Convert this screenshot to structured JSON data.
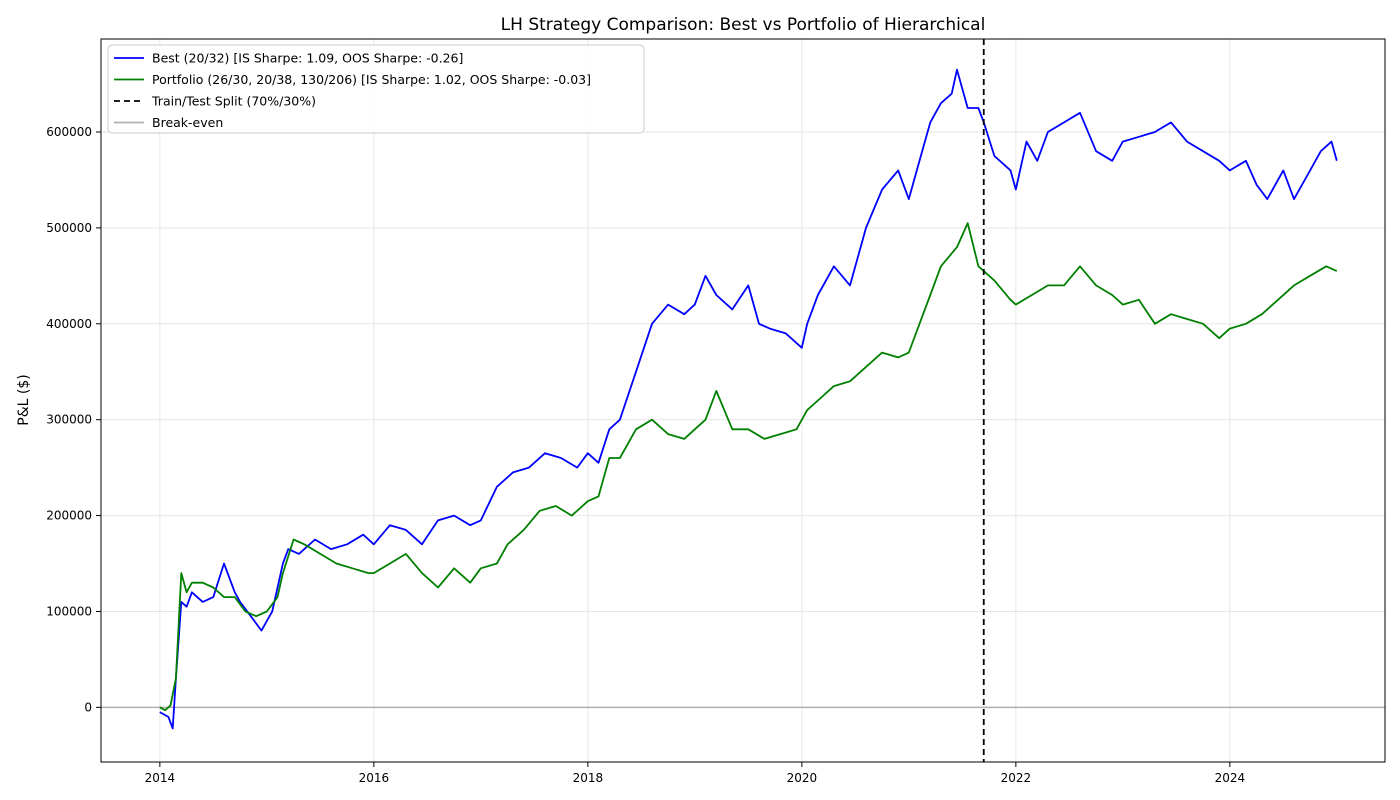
{
  "chart_data": {
    "type": "line",
    "title": "LH Strategy Comparison: Best vs Portfolio of Hierarchical",
    "xlabel": "",
    "ylabel": "P&L ($)",
    "xlim": [
      2013.45,
      2025.45
    ],
    "ylim": [
      -57000,
      697000
    ],
    "x_ticks": [
      2014,
      2016,
      2018,
      2020,
      2022,
      2024
    ],
    "x_tick_labels": [
      "2014",
      "2016",
      "2018",
      "2020",
      "2022",
      "2024"
    ],
    "y_ticks": [
      0,
      100000,
      200000,
      300000,
      400000,
      500000,
      600000
    ],
    "y_tick_labels": [
      "0",
      "100000",
      "200000",
      "300000",
      "400000",
      "500000",
      "600000"
    ],
    "grid": true,
    "legend_position": "upper-left",
    "split": {
      "x": 2021.7,
      "label": "Train/Test Split (70%/30%)",
      "color": "#000000"
    },
    "baseline": {
      "y": 0,
      "label": "Break-even",
      "color": "#b0b0b0"
    },
    "series": [
      {
        "name": "Best (20/32) [IS Sharpe: 1.09, OOS Sharpe: -0.26]",
        "color": "#0000ff",
        "x": [
          2014.0,
          2014.08,
          2014.12,
          2014.15,
          2014.2,
          2014.25,
          2014.3,
          2014.4,
          2014.5,
          2014.6,
          2014.7,
          2014.75,
          2014.85,
          2014.95,
          2015.0,
          2015.05,
          2015.15,
          2015.2,
          2015.3,
          2015.45,
          2015.6,
          2015.75,
          2015.9,
          2016.0,
          2016.15,
          2016.3,
          2016.45,
          2016.6,
          2016.75,
          2016.9,
          2017.0,
          2017.15,
          2017.3,
          2017.45,
          2017.6,
          2017.75,
          2017.9,
          2018.0,
          2018.1,
          2018.2,
          2018.3,
          2018.45,
          2018.6,
          2018.75,
          2018.9,
          2019.0,
          2019.1,
          2019.2,
          2019.35,
          2019.5,
          2019.6,
          2019.7,
          2019.85,
          2020.0,
          2020.05,
          2020.15,
          2020.3,
          2020.45,
          2020.6,
          2020.75,
          2020.9,
          2021.0,
          2021.1,
          2021.2,
          2021.3,
          2021.4,
          2021.45,
          2021.55,
          2021.65,
          2021.7,
          2021.8,
          2021.95,
          2022.0,
          2022.1,
          2022.2,
          2022.3,
          2022.45,
          2022.6,
          2022.75,
          2022.9,
          2023.0,
          2023.15,
          2023.3,
          2023.45,
          2023.6,
          2023.75,
          2023.9,
          2024.0,
          2024.15,
          2024.25,
          2024.35,
          2024.5,
          2024.6,
          2024.75,
          2024.85,
          2024.95,
          2025.0
        ],
        "y": [
          -5000,
          -10000,
          -22000,
          30000,
          110000,
          105000,
          120000,
          110000,
          115000,
          150000,
          120000,
          110000,
          95000,
          80000,
          90000,
          100000,
          150000,
          165000,
          160000,
          175000,
          165000,
          170000,
          180000,
          170000,
          190000,
          185000,
          170000,
          195000,
          200000,
          190000,
          195000,
          230000,
          245000,
          250000,
          265000,
          260000,
          250000,
          265000,
          255000,
          290000,
          300000,
          350000,
          400000,
          420000,
          410000,
          420000,
          450000,
          430000,
          415000,
          440000,
          400000,
          395000,
          390000,
          375000,
          400000,
          430000,
          460000,
          440000,
          500000,
          540000,
          560000,
          530000,
          570000,
          610000,
          630000,
          640000,
          665000,
          625000,
          625000,
          610000,
          575000,
          560000,
          540000,
          590000,
          570000,
          600000,
          610000,
          620000,
          580000,
          570000,
          590000,
          595000,
          600000,
          610000,
          590000,
          580000,
          570000,
          560000,
          570000,
          545000,
          530000,
          560000,
          530000,
          560000,
          580000,
          590000,
          570000
        ]
      },
      {
        "name": "Portfolio (26/30, 20/38, 130/206) [IS Sharpe: 1.02, OOS Sharpe: -0.03]",
        "color": "#008000",
        "x": [
          2014.0,
          2014.05,
          2014.1,
          2014.15,
          2014.2,
          2014.25,
          2014.3,
          2014.4,
          2014.5,
          2014.6,
          2014.7,
          2014.8,
          2014.9,
          2015.0,
          2015.1,
          2015.15,
          2015.25,
          2015.35,
          2015.5,
          2015.65,
          2015.8,
          2015.95,
          2016.0,
          2016.15,
          2016.3,
          2016.45,
          2016.6,
          2016.75,
          2016.9,
          2017.0,
          2017.15,
          2017.25,
          2017.4,
          2017.55,
          2017.7,
          2017.85,
          2018.0,
          2018.1,
          2018.2,
          2018.3,
          2018.45,
          2018.6,
          2018.75,
          2018.9,
          2019.0,
          2019.1,
          2019.2,
          2019.35,
          2019.5,
          2019.65,
          2019.8,
          2019.95,
          2020.05,
          2020.15,
          2020.3,
          2020.45,
          2020.6,
          2020.75,
          2020.9,
          2021.0,
          2021.1,
          2021.2,
          2021.3,
          2021.45,
          2021.55,
          2021.65,
          2021.7,
          2021.8,
          2021.95,
          2022.0,
          2022.15,
          2022.3,
          2022.45,
          2022.6,
          2022.75,
          2022.9,
          2023.0,
          2023.15,
          2023.3,
          2023.45,
          2023.6,
          2023.75,
          2023.9,
          2024.0,
          2024.15,
          2024.3,
          2024.45,
          2024.6,
          2024.75,
          2024.9,
          2025.0
        ],
        "y": [
          0,
          -3000,
          2000,
          30000,
          140000,
          120000,
          130000,
          130000,
          125000,
          115000,
          115000,
          100000,
          95000,
          100000,
          115000,
          140000,
          175000,
          170000,
          160000,
          150000,
          145000,
          140000,
          140000,
          150000,
          160000,
          140000,
          125000,
          145000,
          130000,
          145000,
          150000,
          170000,
          185000,
          205000,
          210000,
          200000,
          215000,
          220000,
          260000,
          260000,
          290000,
          300000,
          285000,
          280000,
          290000,
          300000,
          330000,
          290000,
          290000,
          280000,
          285000,
          290000,
          310000,
          320000,
          335000,
          340000,
          355000,
          370000,
          365000,
          370000,
          400000,
          430000,
          460000,
          480000,
          505000,
          460000,
          455000,
          445000,
          425000,
          420000,
          430000,
          440000,
          440000,
          460000,
          440000,
          430000,
          420000,
          425000,
          400000,
          410000,
          405000,
          400000,
          385000,
          395000,
          400000,
          410000,
          425000,
          440000,
          450000,
          460000,
          455000
        ]
      }
    ]
  }
}
